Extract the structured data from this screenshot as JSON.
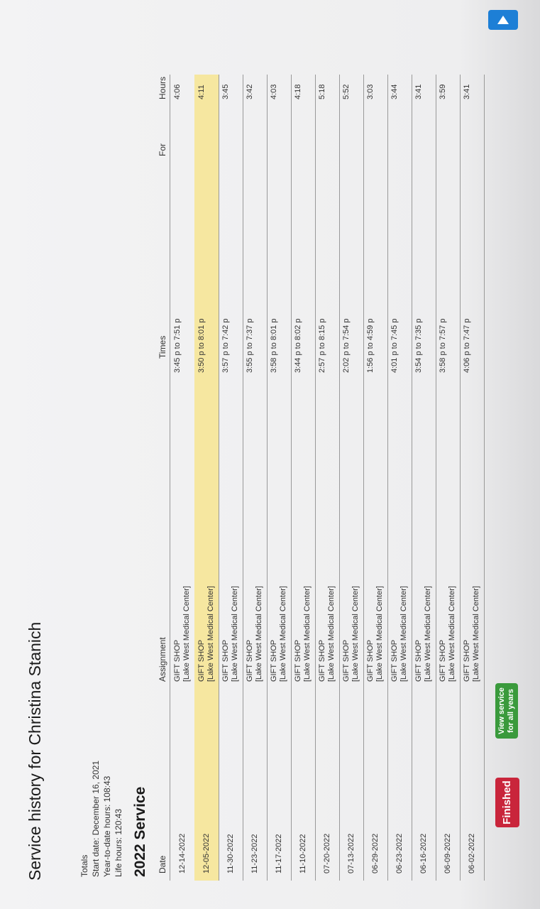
{
  "header": {
    "title": "Service history for Christina Stanich"
  },
  "totals": {
    "heading": "Totals",
    "start_date": "Start date: December 16, 2021",
    "ytd_hours": "Year-to-date hours: 108:43",
    "life_hours": "Life hours: 120:43"
  },
  "section_title": "2022 Service",
  "table": {
    "columns": [
      "Date",
      "Assignment",
      "Times",
      "For",
      "Hours"
    ],
    "highlighted_row": 1,
    "rows": [
      [
        "12-14-2022",
        "GIFT SHOP",
        "[Lake West Medical Center]",
        "3:45 p to 7:51 p",
        "4:06"
      ],
      [
        "12-05-2022",
        "GIFT SHOP",
        "[Lake West Medical Center]",
        "3:50 p to 8:01 p",
        "4:11"
      ],
      [
        "11-30-2022",
        "GIFT SHOP",
        "[Lake West Medical Center]",
        "3:57 p to 7:42 p",
        "3:45"
      ],
      [
        "11-23-2022",
        "GIFT SHOP",
        "[Lake West Medical Center]",
        "3:55 p to 7:37 p",
        "3:42"
      ],
      [
        "11-17-2022",
        "GIFT SHOP",
        "[Lake West Medical Center]",
        "3:58 p to 8:01 p",
        "4:03"
      ],
      [
        "11-10-2022",
        "GIFT SHOP",
        "[Lake West Medical Center]",
        "3:44 p to 8:02 p",
        "4:18"
      ],
      [
        "07-20-2022",
        "GIFT SHOP",
        "[Lake West Medical Center]",
        "2:57 p to 8:15 p",
        "5:18"
      ],
      [
        "07-13-2022",
        "GIFT SHOP",
        "[Lake West Medical Center]",
        "2:02 p to 7:54 p",
        "5:52"
      ],
      [
        "06-29-2022",
        "GIFT SHOP",
        "[Lake West Medical Center]",
        "1:56 p to 4:59 p",
        "3:03"
      ],
      [
        "06-23-2022",
        "GIFT SHOP",
        "[Lake West Medical Center]",
        "4:01 p to 7:45 p",
        "3:44"
      ],
      [
        "06-16-2022",
        "GIFT SHOP",
        "[Lake West Medical Center]",
        "3:54 p to 7:35 p",
        "3:41"
      ],
      [
        "06-09-2022",
        "GIFT SHOP",
        "[Lake West Medical Center]",
        "3:58 p to 7:57 p",
        "3:59"
      ],
      [
        "06-02-2022",
        "GIFT SHOP",
        "[Lake West Medical Center]",
        "4:06 p to 7:47 p",
        "3:41"
      ]
    ]
  },
  "buttons": {
    "finished": "Finished",
    "all_years": "View service for all years"
  }
}
